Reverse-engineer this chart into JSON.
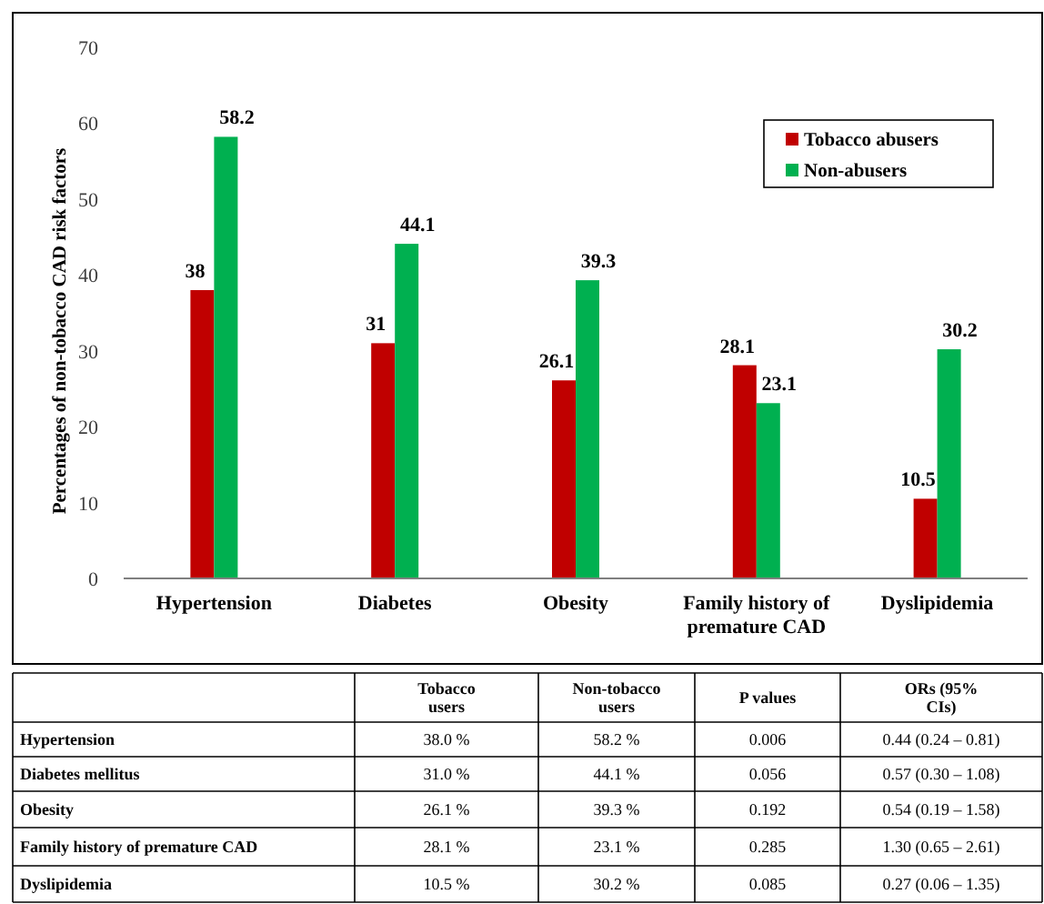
{
  "chart_data": [
    {
      "type": "bar",
      "ylabel": "Percentages of non-tobacco CAD risk factors",
      "categories": [
        "Hypertension",
        "Diabetes",
        "Obesity",
        "Family history of premature CAD",
        "Dyslipidemia"
      ],
      "series": [
        {
          "name": "Tobacco abusers",
          "color": "#c00000",
          "values": [
            38,
            31,
            26.1,
            28.1,
            10.5
          ]
        },
        {
          "name": "Non-abusers",
          "color": "#00b050",
          "values": [
            58.2,
            44.1,
            39.3,
            23.1,
            30.2
          ]
        }
      ],
      "ylim": [
        0,
        70
      ],
      "yticks": [
        0,
        10,
        20,
        30,
        40,
        50,
        60,
        70
      ],
      "grid": false,
      "legend": "top right",
      "data_labels": true
    },
    {
      "type": "other",
      "categories": [
        null,
        "Tobacco users",
        "Non-tobacco users",
        "P values",
        "ORs (95% CIs)"
      ],
      "y_categories": [
        "Hypertension",
        "Diabetes mellitus",
        "Obesity",
        "Family history of premature CAD",
        "Dyslipidemia"
      ],
      "cell_labels": [
        [
          "38.0 %",
          "58.2 %",
          "0.006",
          "0.44 (0.24 – 0.81)"
        ],
        [
          "31.0 %",
          "44.1 %",
          "0.056",
          "0.57 (0.30 – 1.08)"
        ],
        [
          "26.1 %",
          "39.3 %",
          "0.192",
          "0.54 (0.19 – 1.58)"
        ],
        [
          "28.1 %",
          "23.1 %",
          "0.285",
          "1.30 (0.65 – 2.61)"
        ],
        [
          "10.5 %",
          "30.2 %",
          "0.085",
          "0.27 (0.06 – 1.35)"
        ]
      ]
    }
  ]
}
